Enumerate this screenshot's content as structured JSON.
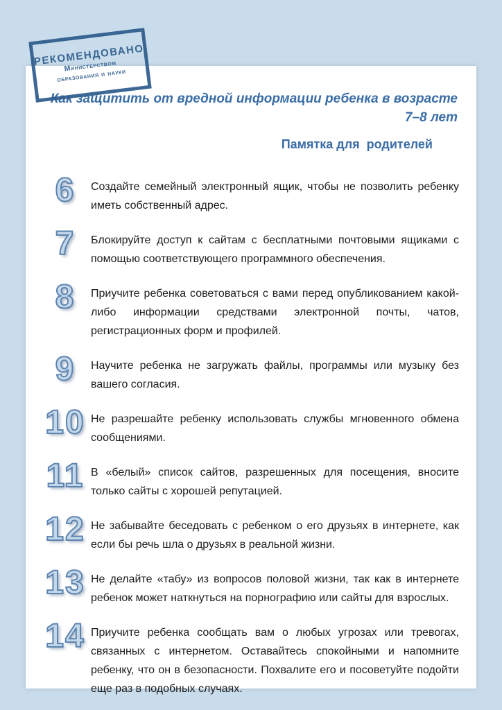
{
  "page": {
    "background_color": "#c9dceb",
    "panel_color": "#ffffff",
    "accent_color": "#3a6da6",
    "stamp_color": "#2f5c8c",
    "number_fill_color": "#c4d8ea",
    "number_stroke_color": "#5d84b0"
  },
  "stamp": {
    "line1": "РЕКОМЕНДОВАНО",
    "line2": "Министерством",
    "line3": "образования и науки"
  },
  "header": {
    "title": "Как защитить от вредной информации ребенка в возрасте 7–8 лет",
    "subtitle": "Памятка для  родителей"
  },
  "items": [
    {
      "number": "6",
      "text": "Создайте семейный электронный ящик, чтобы не позволить ребенку иметь собственный адрес."
    },
    {
      "number": "7",
      "text": "Блокируйте доступ к сайтам с бесплатными почтовыми ящиками с помощью соответствующего программного обеспечения."
    },
    {
      "number": "8",
      "text": "Приучите ребенка советоваться с вами перед опубликованием какой-либо информации средствами электронной почты, чатов, регистрационных форм и профилей."
    },
    {
      "number": "9",
      "text": "Научите ребенка не загружать файлы, программы или музыку без вашего согласия."
    },
    {
      "number": "10",
      "text": "Не разрешайте ребенку использовать службы мгновенного обмена сообщениями."
    },
    {
      "number": "11",
      "text": "В «белый» список сайтов, разрешенных для посещения, вносите только сайты с хорошей репутацией."
    },
    {
      "number": "12",
      "text": "Не забывайте беседовать с ребенком о его друзьях в интернете, как если бы речь шла о друзьях в реальной жизни."
    },
    {
      "number": "13",
      "text": "Не делайте «табу» из вопросов половой жизни, так как в интернете ребенок может наткнуться на порнографию или сайты для взрослых."
    },
    {
      "number": "14",
      "text": "Приучите ребенка сообщать вам о любых угрозах или тревогах, связанных с интернетом. Оставайтесь спокойными и напомните ребенку, что он в безопасности. Похвалите его и посоветуйте подойти еще раз в подобных случаях."
    }
  ]
}
